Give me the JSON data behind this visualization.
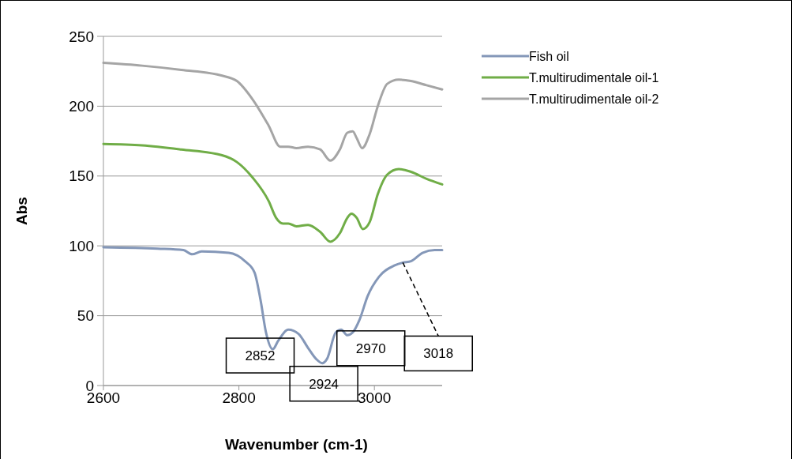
{
  "chart_data": {
    "type": "line",
    "xlabel": "Wavenumber (cm-1)",
    "ylabel": "Abs",
    "xlim": [
      2600,
      3100
    ],
    "xticks": [
      2600,
      2800,
      3000
    ],
    "ylim": [
      0,
      250
    ],
    "yticks": [
      0,
      50,
      100,
      150,
      200,
      250
    ],
    "grid": "y",
    "legend": "right",
    "marker": "none",
    "line_style": "solid",
    "series": [
      {
        "name": "Fish oil",
        "color": "#8497b8",
        "x": [
          2600,
          2680,
          2718,
          2731,
          2745,
          2785,
          2809,
          2823,
          2832,
          2840,
          2850,
          2858,
          2873,
          2888,
          2902,
          2914,
          2923,
          2930,
          2943,
          2951,
          2960,
          2968,
          2978,
          2990,
          3007,
          3030,
          3042,
          3054,
          3071,
          3089,
          3100
        ],
        "values": [
          99,
          98,
          97,
          94,
          96,
          95,
          89,
          81,
          61,
          38,
          26,
          32,
          40,
          37,
          27,
          19,
          16,
          19,
          38,
          40,
          36,
          38,
          47,
          64,
          78,
          86,
          88,
          89,
          95,
          97,
          97
        ]
      },
      {
        "name": "T.multirudimentale oil-1",
        "color": "#70ad47",
        "x": [
          2600,
          2657,
          2715,
          2774,
          2797,
          2820,
          2844,
          2855,
          2865,
          2873,
          2885,
          2902,
          2920,
          2935,
          2949,
          2960,
          2966,
          2974,
          2983,
          2993,
          3005,
          3019,
          3036,
          3054,
          3077,
          3100
        ],
        "values": [
          173,
          172,
          169,
          165,
          160,
          149,
          132,
          120,
          116,
          116,
          114,
          115,
          110,
          103,
          109,
          120,
          123,
          120,
          112,
          117,
          137,
          151,
          155,
          153,
          148,
          144
        ]
      },
      {
        "name": "T.multirudimentale oil-2",
        "color": "#a5a5a5",
        "x": [
          2600,
          2657,
          2715,
          2774,
          2797,
          2820,
          2844,
          2861,
          2873,
          2885,
          2902,
          2920,
          2935,
          2949,
          2960,
          2968,
          2974,
          2982,
          2993,
          3005,
          3019,
          3036,
          3054,
          3077,
          3100
        ],
        "values": [
          231,
          229,
          226,
          222,
          218,
          205,
          186,
          171,
          171,
          170,
          171,
          169,
          161,
          169,
          181,
          182,
          177,
          170,
          180,
          200,
          216,
          219,
          218,
          215,
          212
        ]
      }
    ],
    "annotations": [
      {
        "text": "2852",
        "x": 2850,
        "y": 26
      },
      {
        "text": "2924",
        "x": 2923,
        "y": 16
      },
      {
        "text": "2970",
        "x": 2968,
        "y": 38
      },
      {
        "text": "3018",
        "x": 3042,
        "y": 88
      }
    ]
  }
}
